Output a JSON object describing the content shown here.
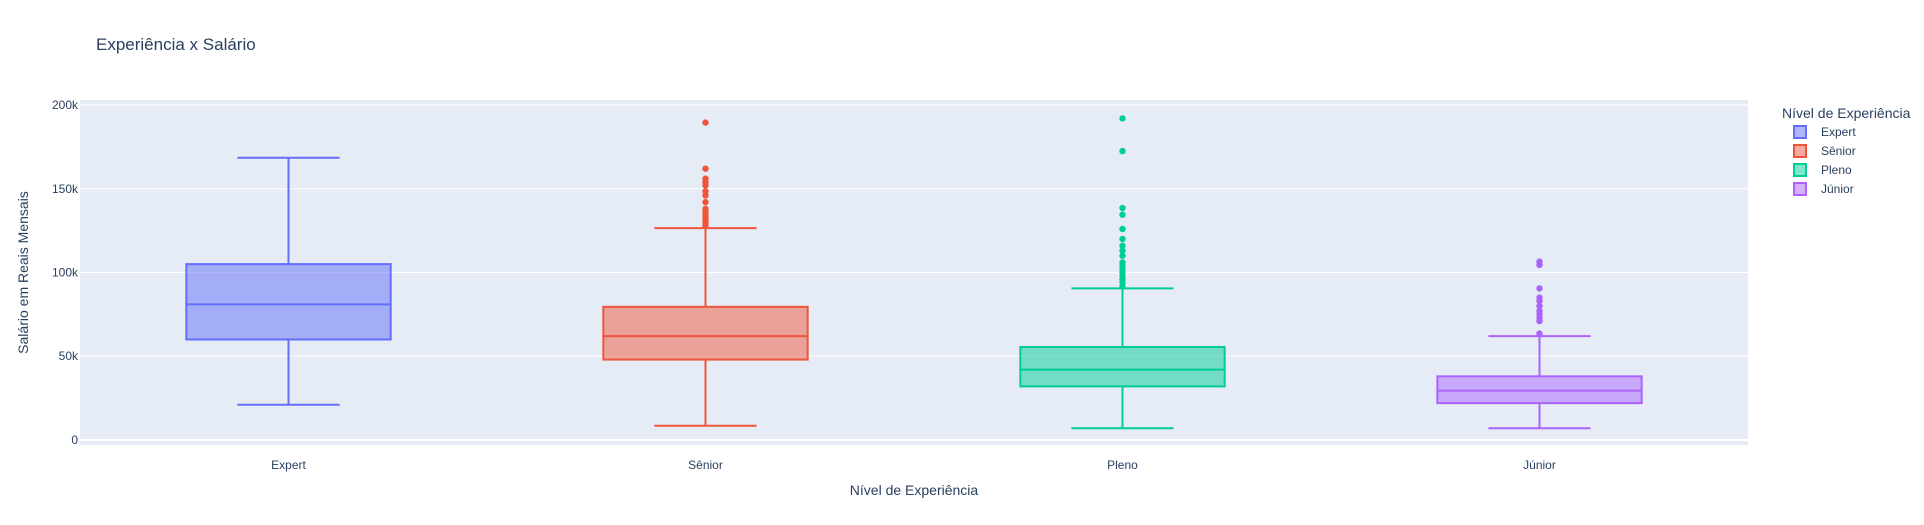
{
  "chart_data": {
    "type": "box",
    "title": "Experiência x Salário",
    "xlabel": "Nível de Experiência",
    "ylabel": "Salário em Reais Mensais",
    "ylim": [
      -3000,
      203000
    ],
    "yticks": [
      0,
      50000,
      100000,
      150000,
      200000
    ],
    "ytick_labels": [
      "0",
      "50k",
      "100k",
      "150k",
      "200k"
    ],
    "grid": true,
    "legend": {
      "title": "Nível de Experiência",
      "position": "right"
    },
    "series": [
      {
        "name": "Expert",
        "color": "#636efa",
        "fill": "rgba(99,110,250,0.5)",
        "lowerfence": 21000,
        "q1": 60000,
        "median": 81000,
        "q3": 105000,
        "upperfence": 168500,
        "outliers": []
      },
      {
        "name": "Sênior",
        "color": "#ef553b",
        "fill": "rgba(239,85,59,0.5)",
        "lowerfence": 8500,
        "q1": 48000,
        "median": 62000,
        "q3": 79500,
        "upperfence": 126500,
        "outliers": [
          128000,
          130000,
          131500,
          133000,
          134500,
          136000,
          138000,
          142000,
          146000,
          148500,
          152000,
          154000,
          156000,
          162000,
          189500
        ]
      },
      {
        "name": "Pleno",
        "color": "#00cc96",
        "fill": "rgba(0,204,150,0.5)",
        "lowerfence": 7000,
        "q1": 32000,
        "median": 42000,
        "q3": 55500,
        "upperfence": 90500,
        "outliers": [
          92000,
          94000,
          96000,
          98000,
          100000,
          102000,
          104000,
          106000,
          110000,
          113000,
          116000,
          120000,
          126000,
          134500,
          138500,
          172500,
          192000
        ]
      },
      {
        "name": "Júnior",
        "color": "#ab63fa",
        "fill": "rgba(171,99,250,0.5)",
        "lowerfence": 7000,
        "q1": 22000,
        "median": 29500,
        "q3": 38000,
        "upperfence": 62000,
        "outliers": [
          63500,
          71000,
          73000,
          75000,
          77000,
          80000,
          83000,
          85000,
          90500,
          104500,
          106500
        ]
      }
    ]
  }
}
